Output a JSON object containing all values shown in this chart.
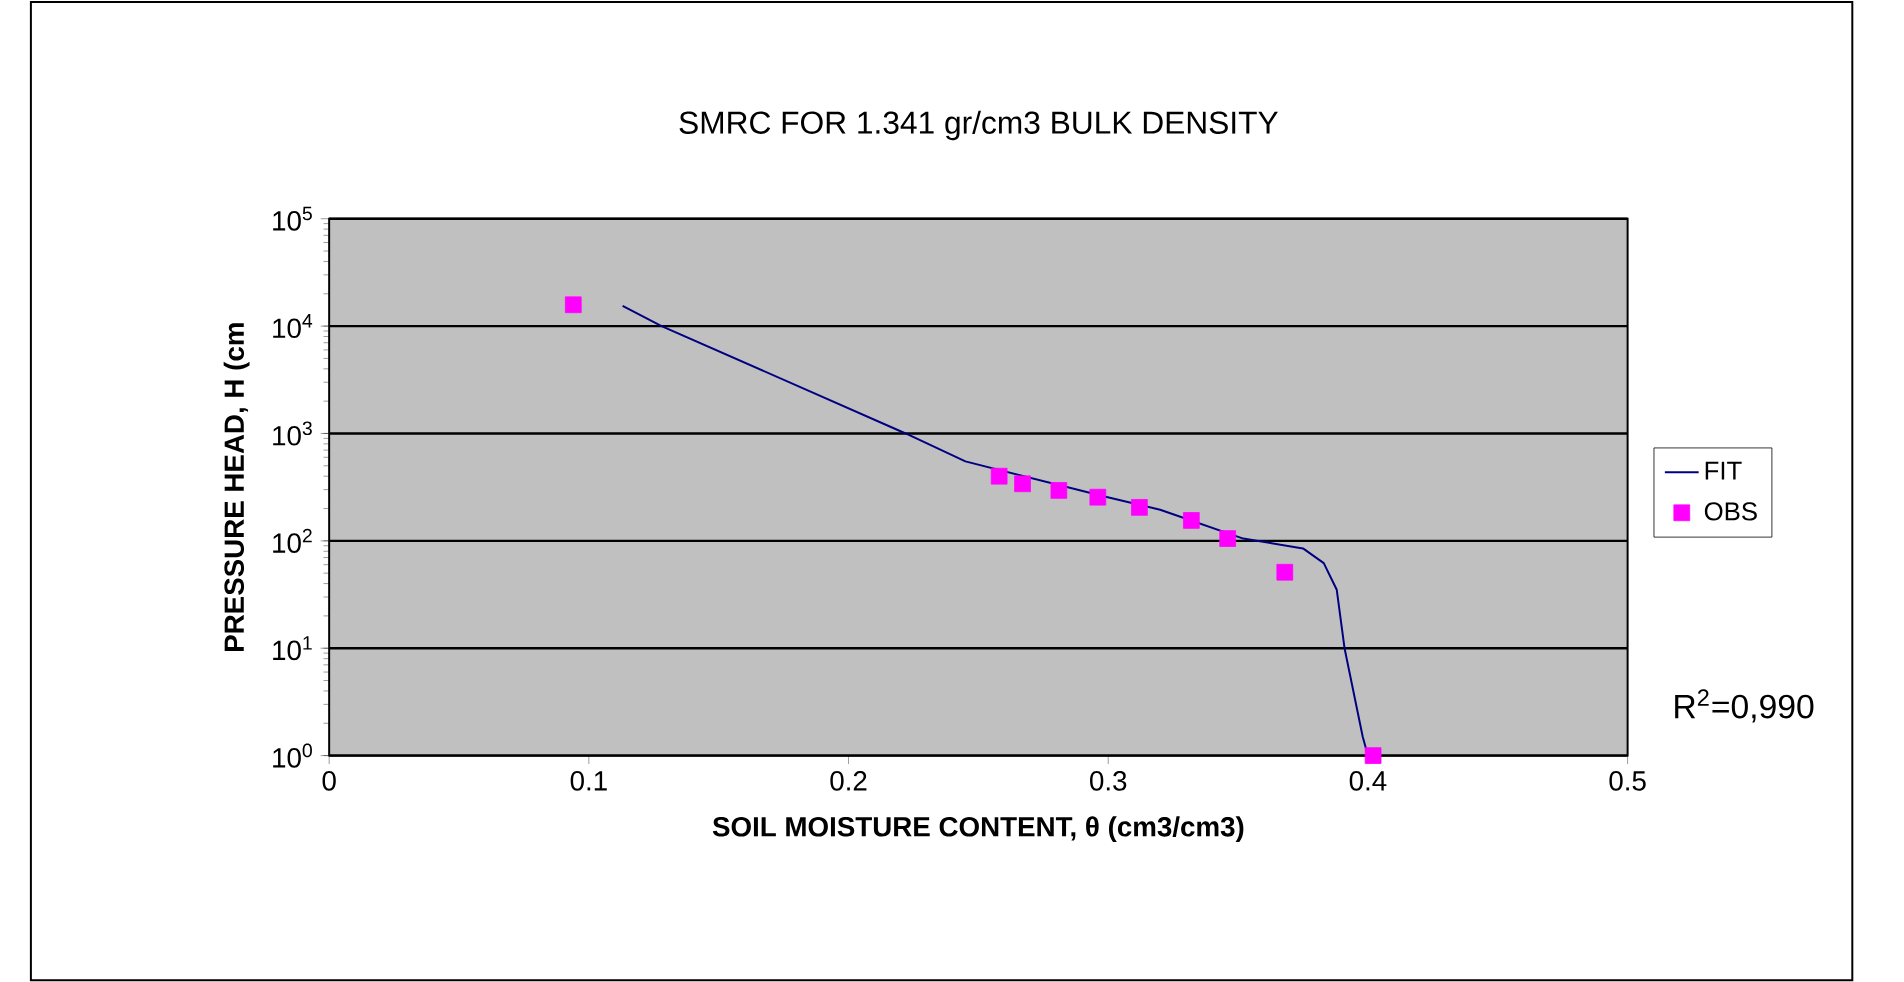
{
  "chart_data": {
    "type": "scatter",
    "title": "SMRC  FOR 1.341 gr/cm3 BULK DENSITY",
    "xlabel": "SOIL MOISTURE CONTENT, θ (cm3/cm3)",
    "ylabel": "PRESSURE HEAD, H (cm",
    "annotations": [
      "R$^{2}$=0,990"
    ],
    "series": [
      {
        "name": "FIT",
        "type": "line",
        "color": "#000080",
        "marker": "none",
        "x": [
          0.113,
          0.128,
          0.222,
          0.245,
          0.299,
          0.32,
          0.352,
          0.375,
          0.383,
          0.388,
          0.391,
          0.398,
          0.4
        ],
        "values": [
          15400,
          10000,
          1000,
          550,
          257,
          195,
          105,
          85,
          62,
          35,
          10,
          1.5,
          1
        ]
      },
      {
        "name": "OBS",
        "type": "scatter",
        "color": "#ff00ff",
        "marker": "square",
        "x": [
          0.094,
          0.258,
          0.267,
          0.281,
          0.296,
          0.312,
          0.332,
          0.346,
          0.368,
          0.402
        ],
        "values": [
          15800,
          400,
          340,
          295,
          255,
          205,
          155,
          105,
          51,
          1
        ]
      }
    ],
    "log": "y",
    "xlim": [
      0,
      0.5
    ],
    "xticks": [
      0,
      0.1,
      0.2,
      0.3,
      0.4,
      0.5
    ],
    "ylim": [
      1,
      100000
    ],
    "yticks": [
      {
        "value": 1,
        "label": "10$^{0}$"
      },
      {
        "value": 10,
        "label": "10$^{1}$"
      },
      {
        "value": 100,
        "label": "10$^{2}$"
      },
      {
        "value": 1000,
        "label": "10$^{3}$"
      },
      {
        "value": 10000,
        "label": "10$^{4}$"
      },
      {
        "value": 100000,
        "label": "10$^{5}$"
      }
    ],
    "grid": "y",
    "legend": "right"
  }
}
